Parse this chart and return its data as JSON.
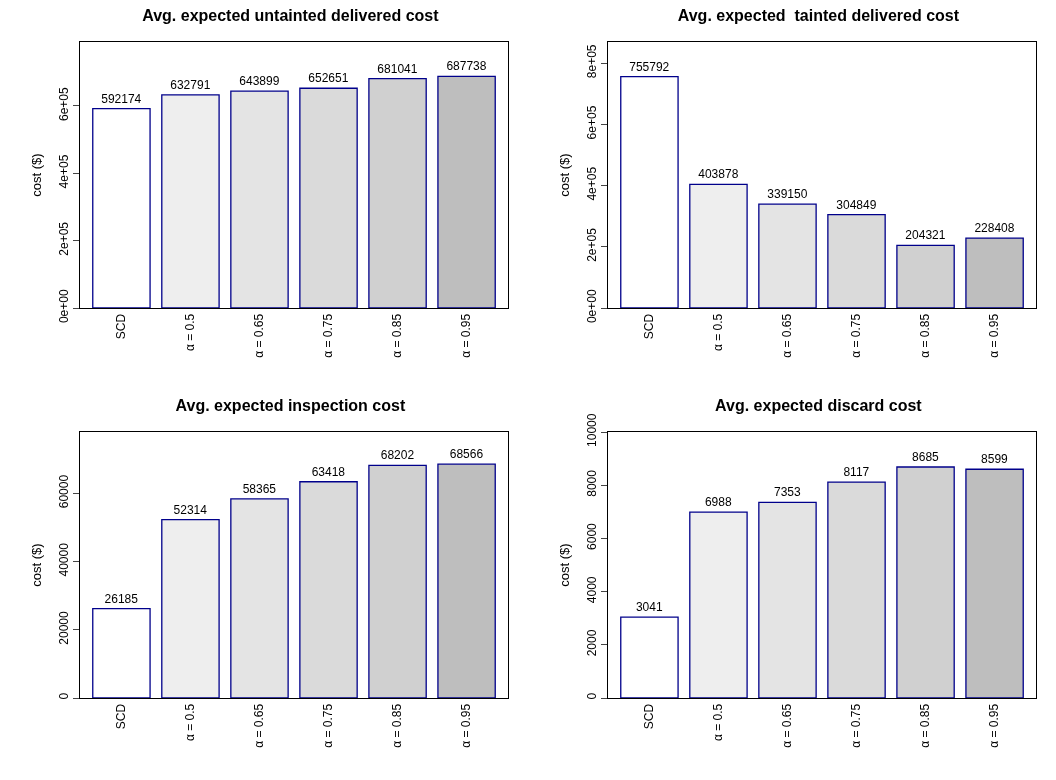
{
  "chart_data": [
    {
      "type": "bar",
      "title": "Avg. expected untainted delivered cost",
      "ylabel": "cost ($)",
      "categories": [
        "SCD",
        "α = 0.5",
        "α = 0.65",
        "α = 0.75",
        "α = 0.85",
        "α = 0.95"
      ],
      "values": [
        592174,
        632791,
        643899,
        652651,
        681041,
        687738
      ],
      "colors": [
        "#ffffff",
        "#eeeeee",
        "#e4e4e4",
        "#dadada",
        "#d0d0d0",
        "#bebebe"
      ],
      "ylim": [
        0,
        790000
      ],
      "yticks": [
        {
          "value": 0,
          "label": "0e+00"
        },
        {
          "value": 200000,
          "label": "2e+05"
        },
        {
          "value": 400000,
          "label": "4e+05"
        },
        {
          "value": 600000,
          "label": "6e+05"
        }
      ],
      "grid": false,
      "legend": false,
      "data_labels": true
    },
    {
      "type": "bar",
      "title": "Avg. expected  tainted delivered cost",
      "ylabel": "cost ($)",
      "categories": [
        "SCD",
        "α = 0.5",
        "α = 0.65",
        "α = 0.75",
        "α = 0.85",
        "α = 0.95"
      ],
      "values": [
        755792,
        403878,
        339150,
        304849,
        204321,
        228408
      ],
      "colors": [
        "#ffffff",
        "#eeeeee",
        "#e4e4e4",
        "#dadada",
        "#d0d0d0",
        "#bebebe"
      ],
      "ylim": [
        0,
        869000
      ],
      "yticks": [
        {
          "value": 0,
          "label": "0e+00"
        },
        {
          "value": 200000,
          "label": "2e+05"
        },
        {
          "value": 400000,
          "label": "4e+05"
        },
        {
          "value": 600000,
          "label": "6e+05"
        },
        {
          "value": 800000,
          "label": "8e+05"
        }
      ],
      "grid": false,
      "legend": false,
      "data_labels": true
    },
    {
      "type": "bar",
      "title": "Avg. expected inspection cost",
      "ylabel": "cost ($)",
      "categories": [
        "SCD",
        "α = 0.5",
        "α = 0.65",
        "α = 0.75",
        "α = 0.85",
        "α = 0.95"
      ],
      "values": [
        26185,
        52314,
        58365,
        63418,
        68202,
        68566
      ],
      "colors": [
        "#ffffff",
        "#eeeeee",
        "#e4e4e4",
        "#dadada",
        "#d0d0d0",
        "#bebebe"
      ],
      "ylim": [
        0,
        78000
      ],
      "yticks": [
        0,
        20000,
        40000,
        60000
      ],
      "grid": false,
      "legend": false,
      "data_labels": true
    },
    {
      "type": "bar",
      "title": "Avg. expected discard cost",
      "ylabel": "cost ($)",
      "categories": [
        "SCD",
        "α = 0.5",
        "α = 0.65",
        "α = 0.75",
        "α = 0.85",
        "α = 0.95"
      ],
      "values": [
        3041,
        6988,
        7353,
        8117,
        8685,
        8599
      ],
      "colors": [
        "#ffffff",
        "#eeeeee",
        "#e4e4e4",
        "#dadada",
        "#d0d0d0",
        "#bebebe"
      ],
      "ylim": [
        0,
        10000
      ],
      "yticks": [
        0,
        2000,
        4000,
        6000,
        8000,
        10000
      ],
      "grid": false,
      "legend": false,
      "data_labels": true
    }
  ]
}
